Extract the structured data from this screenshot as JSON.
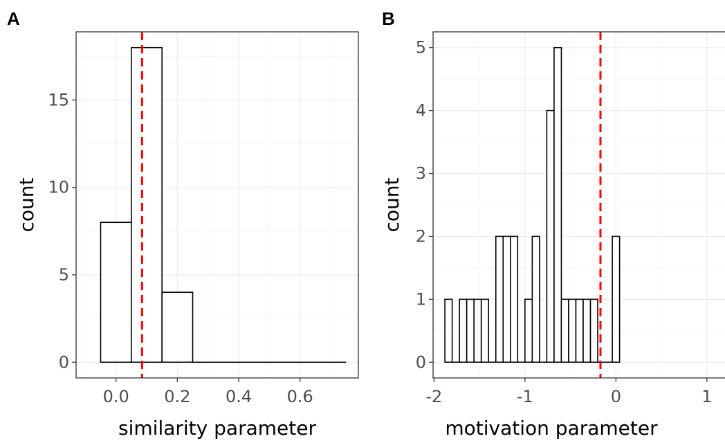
{
  "chart_data": [
    {
      "type": "bar",
      "panel_label": "A",
      "xlabel": "similarity parameter",
      "ylabel": "count",
      "xlim": [
        -0.13,
        0.79
      ],
      "ylim": [
        -0.9,
        18.9
      ],
      "x_ticks": [
        0.0,
        0.2,
        0.4,
        0.6
      ],
      "x_tick_labels": [
        "0.0",
        "0.2",
        "0.4",
        "0.6"
      ],
      "y_ticks": [
        0,
        5,
        10,
        15
      ],
      "y_tick_labels": [
        "0",
        "5",
        "10",
        "15"
      ],
      "grid": true,
      "bins": [
        {
          "x0": -0.05,
          "x1": 0.05,
          "count": 8
        },
        {
          "x0": 0.05,
          "x1": 0.15,
          "count": 18
        },
        {
          "x0": 0.15,
          "x1": 0.25,
          "count": 4
        },
        {
          "x0": 0.25,
          "x1": 0.35,
          "count": 0
        },
        {
          "x0": 0.35,
          "x1": 0.45,
          "count": 0
        },
        {
          "x0": 0.45,
          "x1": 0.55,
          "count": 0
        },
        {
          "x0": 0.55,
          "x1": 0.65,
          "count": 0
        },
        {
          "x0": 0.65,
          "x1": 0.75,
          "count": 0
        }
      ],
      "reference_line": {
        "x": 0.085,
        "color": "#ff0000",
        "style": "dashed"
      }
    },
    {
      "type": "bar",
      "panel_label": "B",
      "xlabel": "motivation parameter",
      "ylabel": "count",
      "xlim": [
        -2.01,
        1.29
      ],
      "ylim": [
        -0.25,
        5.25
      ],
      "x_ticks": [
        -2,
        -1,
        0,
        1
      ],
      "x_tick_labels": [
        "-2",
        "-1",
        "0",
        "1"
      ],
      "y_ticks": [
        0,
        1,
        2,
        3,
        4,
        5
      ],
      "y_tick_labels": [
        "0",
        "1",
        "2",
        "3",
        "4",
        "5"
      ],
      "grid": true,
      "bin_start": -1.88,
      "bin_width": 0.08,
      "counts": [
        1,
        0,
        1,
        1,
        1,
        1,
        0,
        2,
        2,
        2,
        0,
        1,
        2,
        0,
        4,
        5,
        1,
        1,
        1,
        1,
        1,
        0,
        0,
        2
      ],
      "reference_line": {
        "x": -0.17,
        "color": "#ff0000",
        "style": "dashed"
      }
    }
  ]
}
